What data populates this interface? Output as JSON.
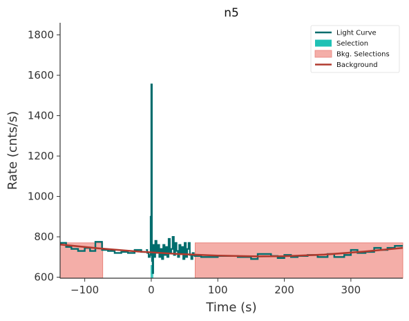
{
  "chart_data": {
    "type": "line",
    "title": "n5",
    "xlabel": "Time (s)",
    "ylabel": "Rate (cnts/s)",
    "xlim": [
      -137,
      378
    ],
    "ylim": [
      595,
      1860
    ],
    "x_ticks": [
      -100,
      0,
      100,
      200,
      300
    ],
    "x_tick_labels": [
      "−100",
      "0",
      "100",
      "200",
      "300"
    ],
    "y_ticks": [
      600,
      800,
      1000,
      1200,
      1400,
      1600,
      1800
    ],
    "y_tick_labels": [
      "600",
      "800",
      "1000",
      "1200",
      "1400",
      "1600",
      "1800"
    ],
    "legend_position": "top-right",
    "grid": false,
    "legend": [
      {
        "label": "Light Curve",
        "kind": "line",
        "color": "#006d6d"
      },
      {
        "label": "Selection",
        "kind": "patch",
        "color": "#1fc1b5"
      },
      {
        "label": "Bkg. Selections",
        "kind": "patch",
        "color": "#f4aea8"
      },
      {
        "label": "Background",
        "kind": "line",
        "color": "#b03a2e"
      }
    ],
    "colors": {
      "light_curve": "#006d6d",
      "selection": "#1fc1b5",
      "bkg_fill": "#f4aea8",
      "bkg_edge": "#e8837a",
      "background": "#b03a2e"
    },
    "bkg_selections": [
      [
        -137,
        -73
      ],
      [
        66,
        378
      ]
    ],
    "selection": [
      -1,
      3
    ],
    "background_model": {
      "x": [
        -137,
        -80,
        -20,
        40,
        100,
        160,
        200,
        260,
        320,
        378
      ],
      "y": [
        762,
        743,
        727,
        715,
        707,
        703,
        704,
        712,
        727,
        745
      ]
    },
    "light_curve_coarse": {
      "edges": [
        -137,
        -128,
        -120,
        -110,
        -100,
        -92,
        -84,
        -74,
        -65,
        -55,
        -45,
        -35,
        -25,
        -15,
        -8
      ],
      "rates": [
        770,
        750,
        740,
        730,
        745,
        730,
        775,
        735,
        730,
        720,
        725,
        720,
        735,
        725
      ]
    },
    "light_curve_fine": {
      "x": [
        -8,
        -6,
        -4,
        -2,
        -1,
        0,
        1,
        2,
        3,
        4,
        5,
        6,
        8,
        10,
        12,
        14,
        16,
        18,
        20,
        22,
        24,
        26,
        28,
        30,
        32,
        34,
        36,
        38,
        40,
        42,
        44,
        46,
        48,
        50,
        52,
        54,
        56,
        58,
        60,
        62,
        64
      ],
      "y": [
        735,
        720,
        700,
        710,
        900,
        1555,
        680,
        620,
        760,
        740,
        700,
        780,
        720,
        760,
        700,
        740,
        690,
        760,
        710,
        750,
        700,
        790,
        720,
        740,
        800,
        710,
        770,
        730,
        700,
        760,
        720,
        750,
        690,
        770,
        700,
        740,
        770,
        710,
        690,
        720,
        705
      ]
    },
    "light_curve_coarse_right": {
      "edges": [
        64,
        75,
        100,
        130,
        150,
        160,
        180,
        190,
        200,
        210,
        220,
        235,
        250,
        265,
        275,
        290,
        300,
        310,
        322,
        335,
        345,
        355,
        366,
        378
      ],
      "rates": [
        705,
        700,
        705,
        700,
        690,
        715,
        705,
        695,
        710,
        700,
        705,
        710,
        700,
        715,
        700,
        710,
        735,
        720,
        725,
        745,
        735,
        745,
        755
      ]
    }
  }
}
